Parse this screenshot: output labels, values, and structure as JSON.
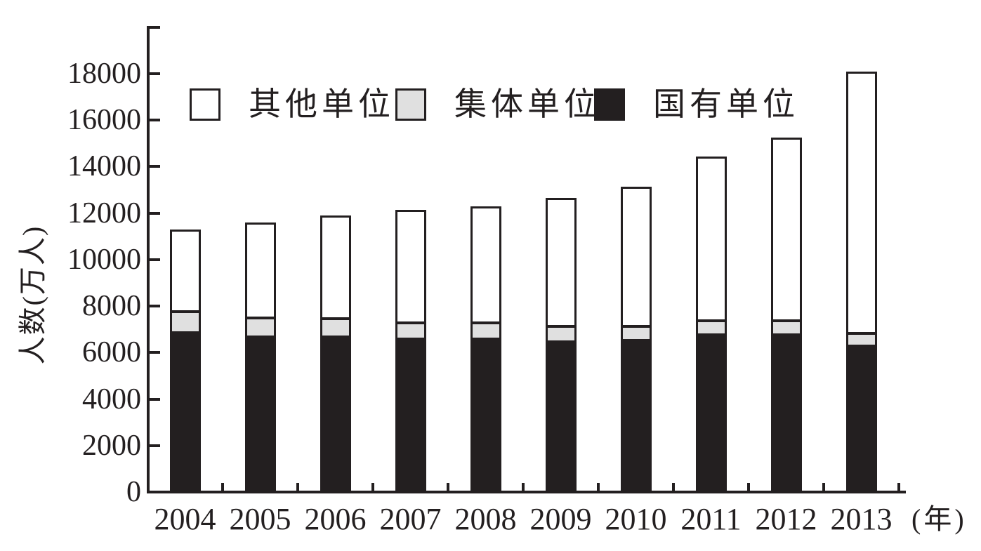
{
  "figure": {
    "background": "#ffffff",
    "axis_color": "#231f20"
  },
  "chart_data": {
    "type": "bar",
    "stacked": true,
    "title": "",
    "ylabel": "人数(万人)",
    "xlabel_suffix": "(年)",
    "ylim": [
      0,
      18000
    ],
    "ytick_step": 2000,
    "yticks": [
      0,
      2000,
      4000,
      6000,
      8000,
      10000,
      12000,
      14000,
      16000,
      18000
    ],
    "grid": false,
    "legend_position": "top-inside",
    "categories": [
      "2004",
      "2005",
      "2006",
      "2007",
      "2008",
      "2009",
      "2010",
      "2011",
      "2012",
      "2013"
    ],
    "series": [
      {
        "key": "state-owned",
        "name": "国有单位",
        "color": "#231f20",
        "values": [
          6900,
          6700,
          6700,
          6600,
          6600,
          6500,
          6550,
          6800,
          6800,
          6300
        ]
      },
      {
        "key": "collective",
        "name": "集体单位",
        "color": "#e0e0e0",
        "values": [
          900,
          830,
          780,
          720,
          700,
          650,
          620,
          600,
          600,
          570
        ]
      },
      {
        "key": "other",
        "name": "其他单位",
        "color": "#ffffff",
        "values": [
          3500,
          4070,
          4420,
          4830,
          5000,
          5500,
          5980,
          7050,
          7850,
          11230
        ]
      }
    ],
    "totals": [
      11300,
      11600,
      11900,
      12150,
      12300,
      12650,
      13150,
      14450,
      15250,
      18100
    ],
    "legend": [
      {
        "key": "other",
        "label": "其他单位",
        "color": "#ffffff"
      },
      {
        "key": "collective",
        "label": "集体单位",
        "color": "#e0e0e0"
      },
      {
        "key": "state-owned",
        "label": "国有单位",
        "color": "#231f20"
      }
    ]
  }
}
